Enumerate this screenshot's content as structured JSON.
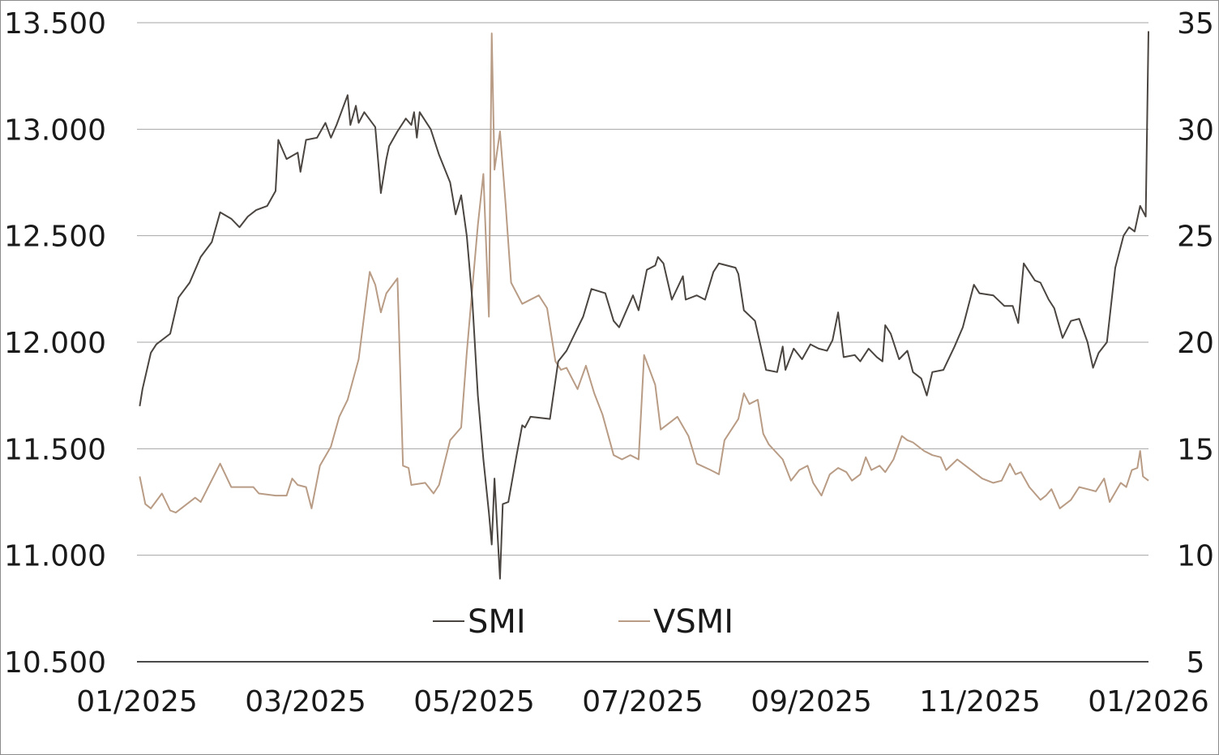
{
  "chart_data": {
    "type": "line",
    "title": "",
    "xlabel": "",
    "ylabel": "",
    "grid": true,
    "legend_position": "bottom-center",
    "x_tick_labels": [
      "01/2025",
      "03/2025",
      "05/2025",
      "07/2025",
      "09/2025",
      "11/2025",
      "01/2026"
    ],
    "x_range": [
      "2025-01-01",
      "2026-01-01"
    ],
    "y_left": {
      "range": [
        10500,
        13500
      ],
      "ticks": [
        10500,
        11000,
        11500,
        12000,
        12500,
        13000,
        13500
      ],
      "tick_labels": [
        "10.500",
        "11.000",
        "11.500",
        "12.000",
        "12.500",
        "13.000",
        "13.500"
      ]
    },
    "y_right": {
      "range": [
        5,
        35
      ],
      "ticks": [
        5,
        10,
        15,
        20,
        25,
        30,
        35
      ],
      "tick_labels": [
        "5",
        "10",
        "15",
        "20",
        "25",
        "30",
        "35"
      ]
    },
    "series": [
      {
        "name": "SMI",
        "axis": "left",
        "color": "#4a4540",
        "points": [
          [
            "2025-01-02",
            11700
          ],
          [
            "2025-01-03",
            11780
          ],
          [
            "2025-01-06",
            11950
          ],
          [
            "2025-01-08",
            11990
          ],
          [
            "2025-01-13",
            12040
          ],
          [
            "2025-01-16",
            12210
          ],
          [
            "2025-01-20",
            12280
          ],
          [
            "2025-01-24",
            12400
          ],
          [
            "2025-01-28",
            12470
          ],
          [
            "2025-01-31",
            12610
          ],
          [
            "2025-02-04",
            12580
          ],
          [
            "2025-02-07",
            12540
          ],
          [
            "2025-02-10",
            12590
          ],
          [
            "2025-02-13",
            12620
          ],
          [
            "2025-02-17",
            12640
          ],
          [
            "2025-02-20",
            12710
          ],
          [
            "2025-02-21",
            12950
          ],
          [
            "2025-02-24",
            12860
          ],
          [
            "2025-02-28",
            12890
          ],
          [
            "2025-03-01",
            12800
          ],
          [
            "2025-03-03",
            12950
          ],
          [
            "2025-03-07",
            12960
          ],
          [
            "2025-03-10",
            13030
          ],
          [
            "2025-03-12",
            12960
          ],
          [
            "2025-03-14",
            13020
          ],
          [
            "2025-03-18",
            13160
          ],
          [
            "2025-03-19",
            13020
          ],
          [
            "2025-03-21",
            13110
          ],
          [
            "2025-03-22",
            13030
          ],
          [
            "2025-03-24",
            13080
          ],
          [
            "2025-03-28",
            13010
          ],
          [
            "2025-03-30",
            12700
          ],
          [
            "2025-04-01",
            12860
          ],
          [
            "2025-04-02",
            12920
          ],
          [
            "2025-04-05",
            12990
          ],
          [
            "2025-04-08",
            13050
          ],
          [
            "2025-04-10",
            13020
          ],
          [
            "2025-04-11",
            13080
          ],
          [
            "2025-04-12",
            12960
          ],
          [
            "2025-04-13",
            13080
          ],
          [
            "2025-04-17",
            13000
          ],
          [
            "2025-04-20",
            12880
          ],
          [
            "2025-04-24",
            12750
          ],
          [
            "2025-04-26",
            12600
          ],
          [
            "2025-04-28",
            12690
          ],
          [
            "2025-04-30",
            12500
          ],
          [
            "2025-05-02",
            12200
          ],
          [
            "2025-05-04",
            11750
          ],
          [
            "2025-05-06",
            11450
          ],
          [
            "2025-05-08",
            11200
          ],
          [
            "2025-05-09",
            11050
          ],
          [
            "2025-05-10",
            11360
          ],
          [
            "2025-05-12",
            10890
          ],
          [
            "2025-05-13",
            11240
          ],
          [
            "2025-05-15",
            11250
          ],
          [
            "2025-05-18",
            11470
          ],
          [
            "2025-05-20",
            11610
          ],
          [
            "2025-05-21",
            11600
          ],
          [
            "2025-05-23",
            11650
          ],
          [
            "2025-05-30",
            11640
          ],
          [
            "2025-06-02",
            11910
          ],
          [
            "2025-06-05",
            11960
          ],
          [
            "2025-06-08",
            12040
          ],
          [
            "2025-06-11",
            12120
          ],
          [
            "2025-06-14",
            12250
          ],
          [
            "2025-06-19",
            12230
          ],
          [
            "2025-06-22",
            12100
          ],
          [
            "2025-06-24",
            12070
          ],
          [
            "2025-06-29",
            12220
          ],
          [
            "2025-07-01",
            12150
          ],
          [
            "2025-07-04",
            12340
          ],
          [
            "2025-07-07",
            12360
          ],
          [
            "2025-07-08",
            12400
          ],
          [
            "2025-07-10",
            12370
          ],
          [
            "2025-07-13",
            12200
          ],
          [
            "2025-07-17",
            12310
          ],
          [
            "2025-07-18",
            12200
          ],
          [
            "2025-07-22",
            12220
          ],
          [
            "2025-07-25",
            12200
          ],
          [
            "2025-07-28",
            12330
          ],
          [
            "2025-07-30",
            12370
          ],
          [
            "2025-08-05",
            12350
          ],
          [
            "2025-08-06",
            12320
          ],
          [
            "2025-08-08",
            12150
          ],
          [
            "2025-08-12",
            12100
          ],
          [
            "2025-08-16",
            11870
          ],
          [
            "2025-08-20",
            11860
          ],
          [
            "2025-08-22",
            11980
          ],
          [
            "2025-08-23",
            11870
          ],
          [
            "2025-08-26",
            11970
          ],
          [
            "2025-08-29",
            11920
          ],
          [
            "2025-09-01",
            11990
          ],
          [
            "2025-09-04",
            11970
          ],
          [
            "2025-09-07",
            11960
          ],
          [
            "2025-09-09",
            12010
          ],
          [
            "2025-09-11",
            12140
          ],
          [
            "2025-09-13",
            11930
          ],
          [
            "2025-09-17",
            11940
          ],
          [
            "2025-09-19",
            11910
          ],
          [
            "2025-09-22",
            11970
          ],
          [
            "2025-09-25",
            11930
          ],
          [
            "2025-09-27",
            11910
          ],
          [
            "2025-09-28",
            12080
          ],
          [
            "2025-09-30",
            12040
          ],
          [
            "2025-10-03",
            11920
          ],
          [
            "2025-10-06",
            11960
          ],
          [
            "2025-10-08",
            11860
          ],
          [
            "2025-10-11",
            11830
          ],
          [
            "2025-10-13",
            11750
          ],
          [
            "2025-10-15",
            11860
          ],
          [
            "2025-10-19",
            11870
          ],
          [
            "2025-10-23",
            11980
          ],
          [
            "2025-10-26",
            12070
          ],
          [
            "2025-10-30",
            12270
          ],
          [
            "2025-11-01",
            12230
          ],
          [
            "2025-11-06",
            12220
          ],
          [
            "2025-11-10",
            12170
          ],
          [
            "2025-11-13",
            12170
          ],
          [
            "2025-11-15",
            12090
          ],
          [
            "2025-11-17",
            12370
          ],
          [
            "2025-11-21",
            12290
          ],
          [
            "2025-11-23",
            12280
          ],
          [
            "2025-11-26",
            12200
          ],
          [
            "2025-11-28",
            12160
          ],
          [
            "2025-12-01",
            12020
          ],
          [
            "2025-12-04",
            12100
          ],
          [
            "2025-12-07",
            12110
          ],
          [
            "2025-12-10",
            12000
          ],
          [
            "2025-12-12",
            11880
          ],
          [
            "2025-12-14",
            11950
          ],
          [
            "2025-12-17",
            12000
          ],
          [
            "2025-12-20",
            12350
          ],
          [
            "2025-12-23",
            12500
          ],
          [
            "2025-12-25",
            12540
          ],
          [
            "2025-12-27",
            12520
          ],
          [
            "2025-12-29",
            12640
          ],
          [
            "2025-12-31",
            12590
          ],
          [
            "2026-01-01",
            13460
          ]
        ]
      },
      {
        "name": "VSMI",
        "axis": "right",
        "color": "#b99c85",
        "points": [
          [
            "2025-01-02",
            13.7
          ],
          [
            "2025-01-04",
            12.4
          ],
          [
            "2025-01-06",
            12.2
          ],
          [
            "2025-01-10",
            12.9
          ],
          [
            "2025-01-13",
            12.1
          ],
          [
            "2025-01-15",
            12.0
          ],
          [
            "2025-01-22",
            12.7
          ],
          [
            "2025-01-24",
            12.5
          ],
          [
            "2025-01-31",
            14.3
          ],
          [
            "2025-02-04",
            13.2
          ],
          [
            "2025-02-12",
            13.2
          ],
          [
            "2025-02-14",
            12.9
          ],
          [
            "2025-02-20",
            12.8
          ],
          [
            "2025-02-24",
            12.8
          ],
          [
            "2025-02-26",
            13.6
          ],
          [
            "2025-02-28",
            13.3
          ],
          [
            "2025-03-03",
            13.2
          ],
          [
            "2025-03-05",
            12.2
          ],
          [
            "2025-03-08",
            14.2
          ],
          [
            "2025-03-12",
            15.1
          ],
          [
            "2025-03-15",
            16.5
          ],
          [
            "2025-03-18",
            17.3
          ],
          [
            "2025-03-22",
            19.2
          ],
          [
            "2025-03-25",
            22.3
          ],
          [
            "2025-03-26",
            23.3
          ],
          [
            "2025-03-28",
            22.7
          ],
          [
            "2025-03-30",
            21.4
          ],
          [
            "2025-04-01",
            22.3
          ],
          [
            "2025-04-05",
            23.0
          ],
          [
            "2025-04-07",
            14.2
          ],
          [
            "2025-04-09",
            14.1
          ],
          [
            "2025-04-10",
            13.3
          ],
          [
            "2025-04-15",
            13.4
          ],
          [
            "2025-04-18",
            12.9
          ],
          [
            "2025-04-20",
            13.3
          ],
          [
            "2025-04-24",
            15.4
          ],
          [
            "2025-04-28",
            16.0
          ],
          [
            "2025-04-30",
            19.5
          ],
          [
            "2025-05-02",
            22.5
          ],
          [
            "2025-05-04",
            25.5
          ],
          [
            "2025-05-06",
            27.9
          ],
          [
            "2025-05-08",
            21.2
          ],
          [
            "2025-05-09",
            34.5
          ],
          [
            "2025-05-10",
            28.1
          ],
          [
            "2025-05-12",
            29.9
          ],
          [
            "2025-05-14",
            26.5
          ],
          [
            "2025-05-16",
            22.8
          ],
          [
            "2025-05-20",
            21.8
          ],
          [
            "2025-05-26",
            22.2
          ],
          [
            "2025-05-29",
            21.6
          ],
          [
            "2025-06-01",
            19.1
          ],
          [
            "2025-06-03",
            18.7
          ],
          [
            "2025-06-05",
            18.8
          ],
          [
            "2025-06-09",
            17.8
          ],
          [
            "2025-06-12",
            18.9
          ],
          [
            "2025-06-15",
            17.6
          ],
          [
            "2025-06-18",
            16.6
          ],
          [
            "2025-06-22",
            14.7
          ],
          [
            "2025-06-25",
            14.5
          ],
          [
            "2025-06-28",
            14.7
          ],
          [
            "2025-07-01",
            14.5
          ],
          [
            "2025-07-03",
            19.4
          ],
          [
            "2025-07-07",
            18.0
          ],
          [
            "2025-07-09",
            15.9
          ],
          [
            "2025-07-12",
            16.2
          ],
          [
            "2025-07-15",
            16.5
          ],
          [
            "2025-07-19",
            15.6
          ],
          [
            "2025-07-22",
            14.3
          ],
          [
            "2025-07-27",
            14.0
          ],
          [
            "2025-07-30",
            13.8
          ],
          [
            "2025-08-01",
            15.4
          ],
          [
            "2025-08-06",
            16.4
          ],
          [
            "2025-08-08",
            17.6
          ],
          [
            "2025-08-10",
            17.1
          ],
          [
            "2025-08-13",
            17.3
          ],
          [
            "2025-08-15",
            15.7
          ],
          [
            "2025-08-17",
            15.2
          ],
          [
            "2025-08-22",
            14.5
          ],
          [
            "2025-08-25",
            13.5
          ],
          [
            "2025-08-28",
            14.0
          ],
          [
            "2025-08-31",
            14.2
          ],
          [
            "2025-09-02",
            13.4
          ],
          [
            "2025-09-05",
            12.8
          ],
          [
            "2025-09-08",
            13.8
          ],
          [
            "2025-09-11",
            14.1
          ],
          [
            "2025-09-14",
            13.9
          ],
          [
            "2025-09-16",
            13.5
          ],
          [
            "2025-09-19",
            13.8
          ],
          [
            "2025-09-21",
            14.6
          ],
          [
            "2025-09-23",
            14.0
          ],
          [
            "2025-09-26",
            14.2
          ],
          [
            "2025-09-28",
            13.9
          ],
          [
            "2025-10-01",
            14.5
          ],
          [
            "2025-10-04",
            15.6
          ],
          [
            "2025-10-06",
            15.4
          ],
          [
            "2025-10-08",
            15.3
          ],
          [
            "2025-10-12",
            14.9
          ],
          [
            "2025-10-15",
            14.7
          ],
          [
            "2025-10-18",
            14.6
          ],
          [
            "2025-10-20",
            14.0
          ],
          [
            "2025-10-24",
            14.5
          ],
          [
            "2025-10-27",
            14.2
          ],
          [
            "2025-10-30",
            13.9
          ],
          [
            "2025-11-02",
            13.6
          ],
          [
            "2025-11-06",
            13.4
          ],
          [
            "2025-11-09",
            13.5
          ],
          [
            "2025-11-12",
            14.3
          ],
          [
            "2025-11-14",
            13.8
          ],
          [
            "2025-11-16",
            13.9
          ],
          [
            "2025-11-19",
            13.2
          ],
          [
            "2025-11-23",
            12.6
          ],
          [
            "2025-11-25",
            12.8
          ],
          [
            "2025-11-27",
            13.1
          ],
          [
            "2025-11-30",
            12.2
          ],
          [
            "2025-12-04",
            12.6
          ],
          [
            "2025-12-07",
            13.2
          ],
          [
            "2025-12-10",
            13.1
          ],
          [
            "2025-12-13",
            13.0
          ],
          [
            "2025-12-16",
            13.6
          ],
          [
            "2025-12-18",
            12.5
          ],
          [
            "2025-12-22",
            13.4
          ],
          [
            "2025-12-24",
            13.2
          ],
          [
            "2025-12-26",
            14.0
          ],
          [
            "2025-12-28",
            14.1
          ],
          [
            "2025-12-29",
            14.9
          ],
          [
            "2025-12-30",
            13.7
          ],
          [
            "2026-01-01",
            13.5
          ]
        ]
      }
    ]
  }
}
